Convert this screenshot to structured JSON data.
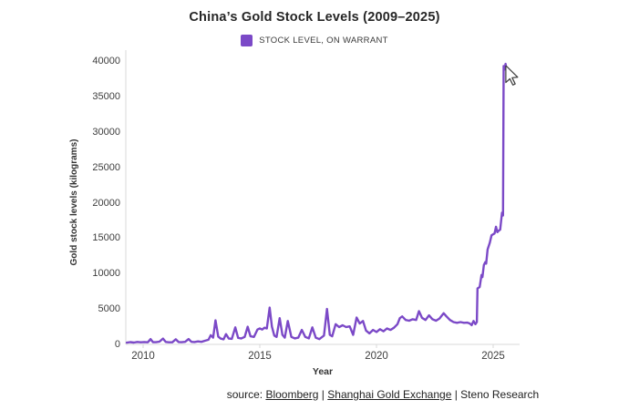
{
  "page": {
    "title": "China’s Gold Stock Levels (2009–2025)",
    "source": {
      "prefix": "source: ",
      "link1": "Bloomberg",
      "sep1": " | ",
      "link2": "Shanghai Gold Exchange",
      "sep2": " | ",
      "rest": "Steno Research"
    }
  },
  "chart_data": {
    "type": "line",
    "title": "China’s Gold Stock Levels (2009–2025)",
    "xlabel": "Year",
    "ylabel": "Gold stock levels (kilograms)",
    "x_ticks": [
      2010,
      2015,
      2020,
      2025
    ],
    "y_ticks": [
      0,
      5000,
      10000,
      15000,
      20000,
      25000,
      30000,
      35000,
      40000
    ],
    "xlim": [
      2009.25,
      2026.1
    ],
    "ylim": [
      0,
      40000
    ],
    "grid": false,
    "legend_position": "top-center",
    "axis_color": "#d9d9d9",
    "legend": [
      {
        "label": "STOCK LEVEL, ON WARRANT",
        "color": "#7B49C7"
      }
    ],
    "series": [
      {
        "name": "STOCK LEVEL, ON WARRANT",
        "color": "#7B49C7",
        "points": [
          [
            2009.3,
            250
          ],
          [
            2009.45,
            320
          ],
          [
            2009.6,
            260
          ],
          [
            2009.75,
            350
          ],
          [
            2009.9,
            290
          ],
          [
            2010.05,
            330
          ],
          [
            2010.2,
            300
          ],
          [
            2010.32,
            750
          ],
          [
            2010.42,
            320
          ],
          [
            2010.55,
            310
          ],
          [
            2010.7,
            390
          ],
          [
            2010.85,
            820
          ],
          [
            2010.97,
            350
          ],
          [
            2011.1,
            300
          ],
          [
            2011.25,
            290
          ],
          [
            2011.4,
            720
          ],
          [
            2011.52,
            330
          ],
          [
            2011.65,
            310
          ],
          [
            2011.8,
            360
          ],
          [
            2011.95,
            760
          ],
          [
            2012.07,
            360
          ],
          [
            2012.2,
            330
          ],
          [
            2012.35,
            420
          ],
          [
            2012.5,
            360
          ],
          [
            2012.65,
            520
          ],
          [
            2012.8,
            650
          ],
          [
            2012.9,
            1300
          ],
          [
            2013.0,
            950
          ],
          [
            2013.1,
            3400
          ],
          [
            2013.22,
            1100
          ],
          [
            2013.32,
            820
          ],
          [
            2013.45,
            720
          ],
          [
            2013.55,
            1450
          ],
          [
            2013.67,
            820
          ],
          [
            2013.8,
            780
          ],
          [
            2013.95,
            2400
          ],
          [
            2014.07,
            920
          ],
          [
            2014.2,
            830
          ],
          [
            2014.35,
            1050
          ],
          [
            2014.48,
            2500
          ],
          [
            2014.6,
            1150
          ],
          [
            2014.75,
            1050
          ],
          [
            2014.9,
            2100
          ],
          [
            2015.0,
            2250
          ],
          [
            2015.1,
            2100
          ],
          [
            2015.2,
            2350
          ],
          [
            2015.3,
            2250
          ],
          [
            2015.42,
            5200
          ],
          [
            2015.52,
            2500
          ],
          [
            2015.62,
            1250
          ],
          [
            2015.72,
            1050
          ],
          [
            2015.85,
            3700
          ],
          [
            2015.97,
            1350
          ],
          [
            2016.07,
            950
          ],
          [
            2016.2,
            3300
          ],
          [
            2016.35,
            1050
          ],
          [
            2016.5,
            850
          ],
          [
            2016.65,
            950
          ],
          [
            2016.8,
            2050
          ],
          [
            2016.95,
            1050
          ],
          [
            2017.1,
            850
          ],
          [
            2017.25,
            2400
          ],
          [
            2017.4,
            950
          ],
          [
            2017.55,
            750
          ],
          [
            2017.75,
            1250
          ],
          [
            2017.88,
            5000
          ],
          [
            2018.0,
            1350
          ],
          [
            2018.1,
            1150
          ],
          [
            2018.25,
            2850
          ],
          [
            2018.4,
            2450
          ],
          [
            2018.55,
            2700
          ],
          [
            2018.7,
            2450
          ],
          [
            2018.85,
            2550
          ],
          [
            2019.0,
            1350
          ],
          [
            2019.15,
            3800
          ],
          [
            2019.28,
            2950
          ],
          [
            2019.42,
            3300
          ],
          [
            2019.55,
            1950
          ],
          [
            2019.7,
            1550
          ],
          [
            2019.85,
            2050
          ],
          [
            2020.0,
            1750
          ],
          [
            2020.15,
            2150
          ],
          [
            2020.3,
            1850
          ],
          [
            2020.45,
            2250
          ],
          [
            2020.6,
            2050
          ],
          [
            2020.75,
            2350
          ],
          [
            2020.9,
            2850
          ],
          [
            2021.0,
            3700
          ],
          [
            2021.1,
            3950
          ],
          [
            2021.25,
            3450
          ],
          [
            2021.4,
            3350
          ],
          [
            2021.55,
            3550
          ],
          [
            2021.7,
            3450
          ],
          [
            2021.82,
            4700
          ],
          [
            2021.95,
            3750
          ],
          [
            2022.1,
            3450
          ],
          [
            2022.25,
            4100
          ],
          [
            2022.4,
            3550
          ],
          [
            2022.55,
            3350
          ],
          [
            2022.7,
            3650
          ],
          [
            2022.88,
            4400
          ],
          [
            2023.0,
            3950
          ],
          [
            2023.15,
            3450
          ],
          [
            2023.3,
            3150
          ],
          [
            2023.45,
            3050
          ],
          [
            2023.6,
            3150
          ],
          [
            2023.75,
            3050
          ],
          [
            2023.9,
            3080
          ],
          [
            2024.0,
            2950
          ],
          [
            2024.08,
            2720
          ],
          [
            2024.16,
            3300
          ],
          [
            2024.24,
            2850
          ],
          [
            2024.3,
            3150
          ],
          [
            2024.33,
            7900
          ],
          [
            2024.42,
            8100
          ],
          [
            2024.5,
            9800
          ],
          [
            2024.54,
            9500
          ],
          [
            2024.6,
            11200
          ],
          [
            2024.66,
            11600
          ],
          [
            2024.7,
            11400
          ],
          [
            2024.76,
            13400
          ],
          [
            2024.85,
            14300
          ],
          [
            2024.93,
            15400
          ],
          [
            2025.0,
            15550
          ],
          [
            2025.06,
            15650
          ],
          [
            2025.12,
            16600
          ],
          [
            2025.18,
            15850
          ],
          [
            2025.24,
            16050
          ],
          [
            2025.3,
            16200
          ],
          [
            2025.38,
            18600
          ],
          [
            2025.42,
            18200
          ],
          [
            2025.45,
            39300
          ],
          [
            2025.49,
            38800
          ],
          [
            2025.53,
            39600
          ],
          [
            2025.58,
            38600
          ],
          [
            2025.62,
            37300
          ]
        ]
      }
    ]
  }
}
